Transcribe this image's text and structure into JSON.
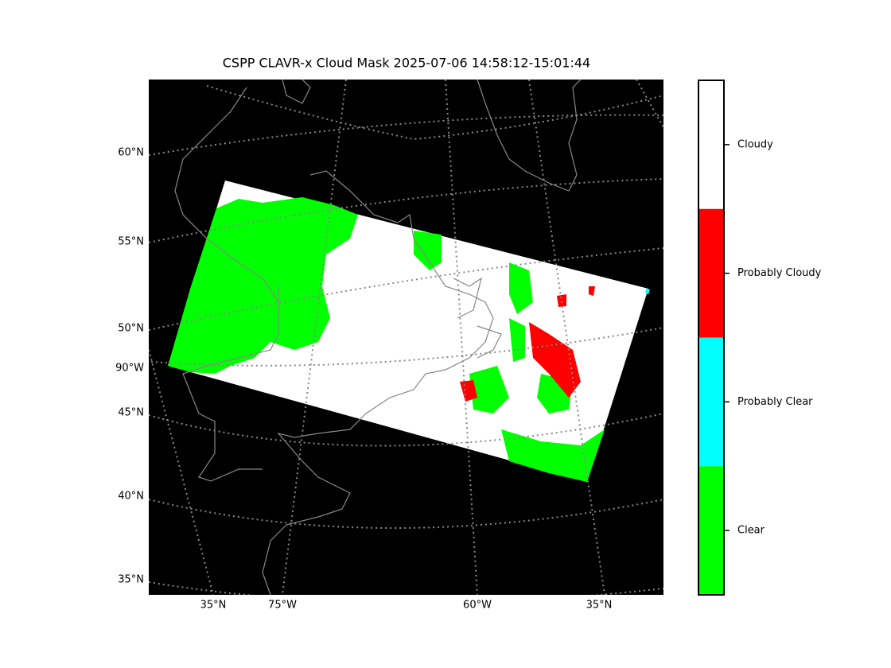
{
  "title": "CSPP CLAVR-x Cloud Mask 2025-07-06 14:58:12-15:01:44",
  "map": {
    "left_labels": [
      "60°N",
      "55°N",
      "50°N",
      "90°W",
      "45°N",
      "40°N",
      "35°N"
    ],
    "bottom_labels": [
      "35°N",
      "75°W",
      "60°W",
      "35°N"
    ]
  },
  "colorbar": {
    "classes": [
      {
        "name": "Cloudy",
        "color": "#ffffff"
      },
      {
        "name": "Probably Cloudy",
        "color": "#ff0000"
      },
      {
        "name": "Probably Clear",
        "color": "#00ffff"
      },
      {
        "name": "Clear",
        "color": "#00ff00"
      }
    ]
  }
}
